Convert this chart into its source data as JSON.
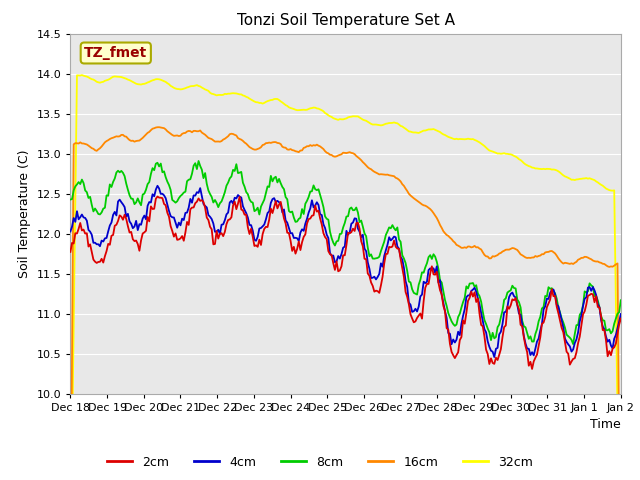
{
  "title": "Tonzi Soil Temperature Set A",
  "xlabel": "Time",
  "ylabel": "Soil Temperature (C)",
  "ylim": [
    10.0,
    14.5
  ],
  "annotation_text": "TZ_fmet",
  "annotation_box_color": "#ffffcc",
  "annotation_text_color": "#990000",
  "fig_bg_color": "#ffffff",
  "plot_bg_color": "#e8e8e8",
  "grid_color": "#ffffff",
  "colors": {
    "2cm": "#dd0000",
    "4cm": "#0000cc",
    "8cm": "#00cc00",
    "16cm": "#ff8800",
    "32cm": "#ffff00"
  },
  "legend_labels": [
    "2cm",
    "4cm",
    "8cm",
    "16cm",
    "32cm"
  ],
  "x_tick_labels": [
    "Dec 18",
    "Dec 19",
    "Dec 20",
    "Dec 21",
    "Dec 22",
    "Dec 23",
    "Dec 24",
    "Dec 25",
    "Dec 26",
    "Dec 27",
    "Dec 28",
    "Dec 29",
    "Dec 30",
    "Dec 31",
    "Jan 1",
    "Jan 2"
  ],
  "n_points": 336
}
